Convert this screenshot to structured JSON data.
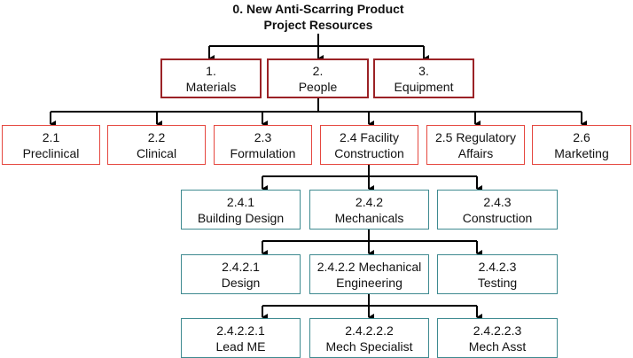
{
  "title": {
    "line1": "0. New Anti-Scarring Product",
    "line2": "Project Resources"
  },
  "colors": {
    "level1_border": "#9b2226",
    "level2_border": "#e5473f",
    "level3_border": "#3e8a90",
    "connector": "#000000"
  },
  "level1": [
    {
      "num": "1.",
      "label": "Materials"
    },
    {
      "num": "2.",
      "label": "People"
    },
    {
      "num": "3.",
      "label": "Equipment"
    }
  ],
  "level2": [
    {
      "num": "2.1",
      "label": "Preclinical"
    },
    {
      "num": "2.2",
      "label": "Clinical"
    },
    {
      "num": "2.3",
      "label": "Formulation"
    },
    {
      "num": "2.4 Facility",
      "label": "Construction"
    },
    {
      "num": "2.5 Regulatory",
      "label": "Affairs"
    },
    {
      "num": "2.6",
      "label": "Marketing"
    }
  ],
  "level3": [
    {
      "num": "2.4.1",
      "label": "Building Design"
    },
    {
      "num": "2.4.2",
      "label": "Mechanicals"
    },
    {
      "num": "2.4.3",
      "label": "Construction"
    }
  ],
  "level4": [
    {
      "num": "2.4.2.1",
      "label": "Design"
    },
    {
      "num": "2.4.2.2 Mechanical",
      "label": "Engineering"
    },
    {
      "num": "2.4.2.3",
      "label": "Testing"
    }
  ],
  "level5": [
    {
      "num": "2.4.2.2.1",
      "label": "Lead ME"
    },
    {
      "num": "2.4.2.2.2",
      "label": "Mech Specialist"
    },
    {
      "num": "2.4.2.2.3",
      "label": "Mech Asst"
    }
  ]
}
